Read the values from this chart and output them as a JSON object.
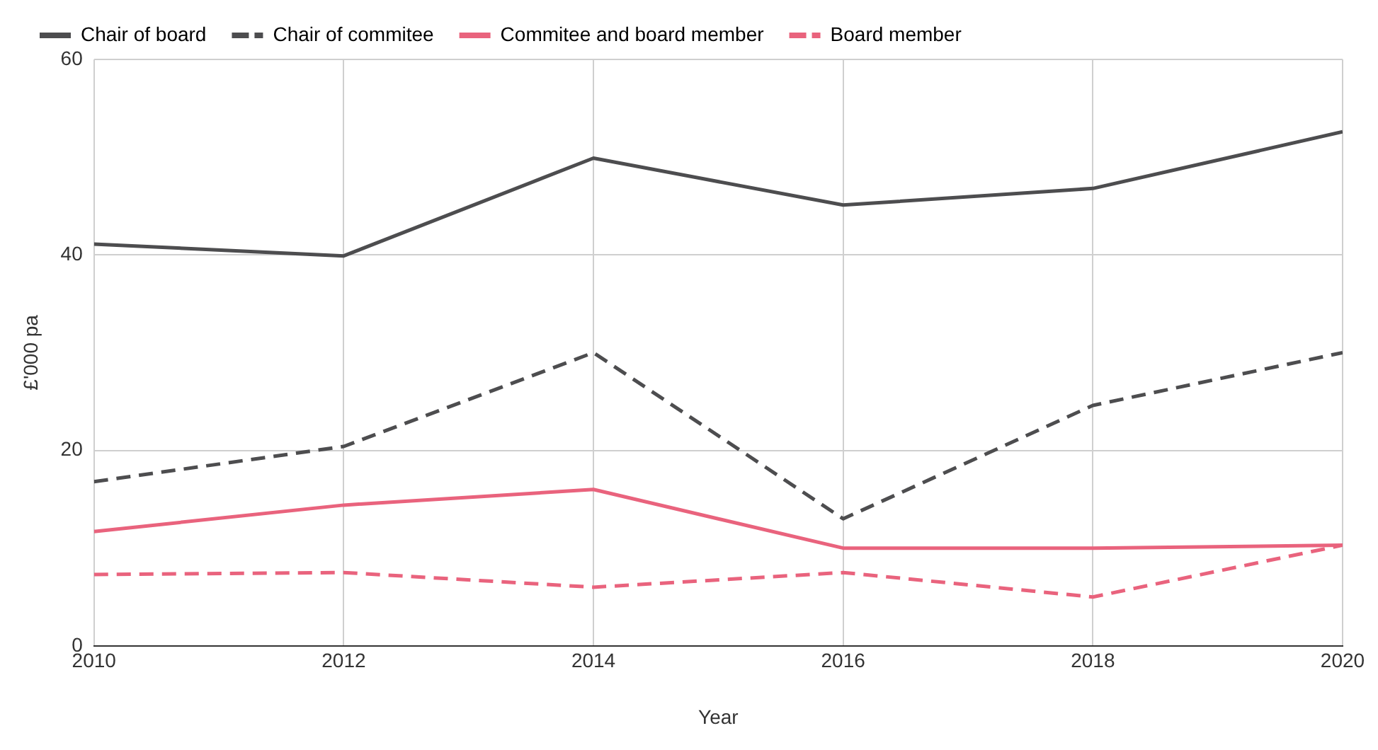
{
  "chart_data": {
    "type": "line",
    "xlabel": "Year",
    "ylabel": "£'000 pa",
    "x": [
      2010,
      2012,
      2014,
      2016,
      2018,
      2020
    ],
    "xlim": [
      2010,
      2020
    ],
    "xticks": [
      2010,
      2012,
      2014,
      2016,
      2018,
      2020
    ],
    "ylim": [
      0,
      60
    ],
    "yticks": [
      0,
      20,
      40,
      60
    ],
    "grid": true,
    "legend": "top",
    "marker": "none",
    "series": [
      {
        "name": "Chair of board",
        "color": "#4d4d4f",
        "line_style": "solid",
        "values": [
          41.1,
          39.9,
          49.9,
          45.1,
          46.8,
          52.6
        ]
      },
      {
        "name": "Chair of commitee",
        "color": "#4d4d4f",
        "line_style": "dashed",
        "values": [
          16.8,
          20.4,
          30,
          13,
          24.6,
          30
        ]
      },
      {
        "name": "Commitee and board member",
        "color": "#e9637d",
        "line_style": "solid",
        "values": [
          11.7,
          14.4,
          16,
          10,
          10,
          10.3
        ]
      },
      {
        "name": "Board member",
        "color": "#e9637d",
        "line_style": "dashed",
        "values": [
          7.3,
          7.5,
          6,
          7.5,
          5,
          10.3
        ]
      }
    ]
  }
}
